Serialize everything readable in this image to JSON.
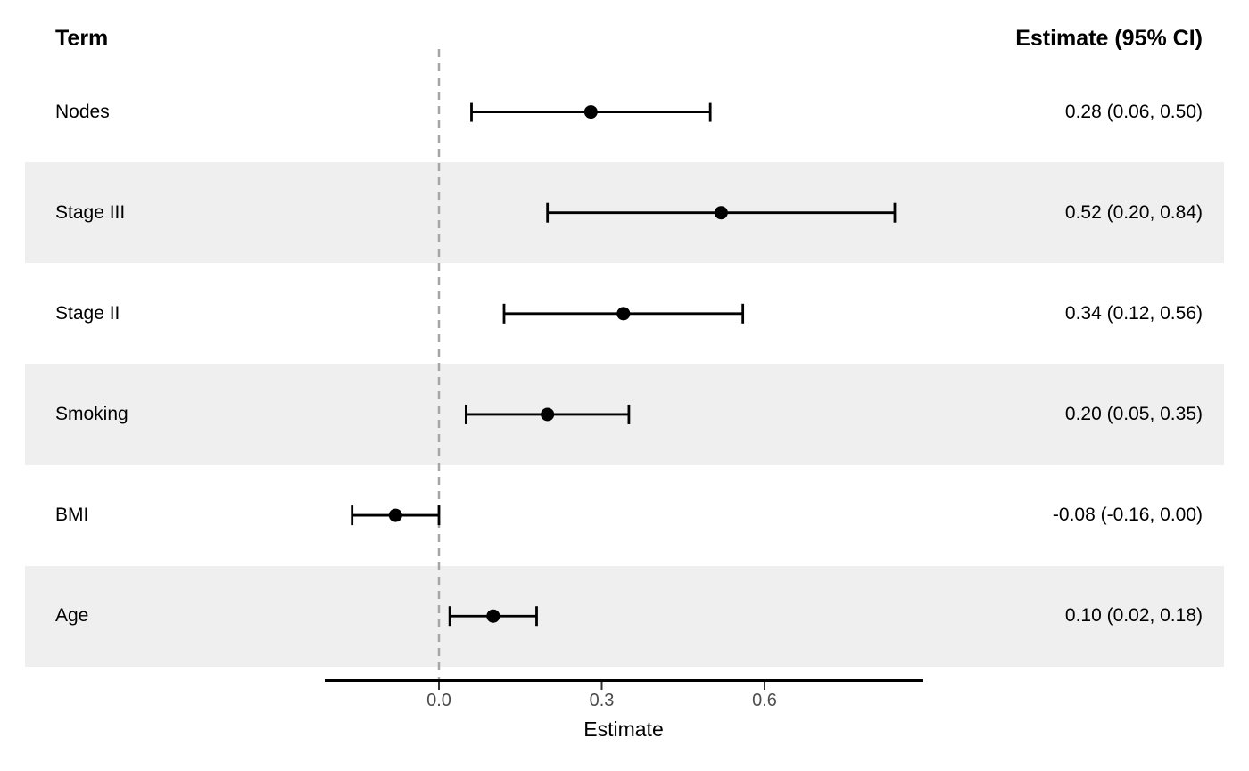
{
  "header": {
    "term": "Term",
    "estimate": "Estimate (95% CI)"
  },
  "chart_data": {
    "type": "forest",
    "title": "",
    "xlabel": "Estimate",
    "xlim": [
      -0.21,
      0.89
    ],
    "grid": false,
    "reference_line": 0,
    "x_ticks": [
      {
        "value": 0.0,
        "label": "0.0"
      },
      {
        "value": 0.3,
        "label": "0.3"
      },
      {
        "value": 0.6,
        "label": "0.6"
      }
    ],
    "rows": [
      {
        "term": "Nodes",
        "estimate": 0.28,
        "ci_low": 0.06,
        "ci_high": 0.5,
        "label": "0.28 (0.06, 0.50)"
      },
      {
        "term": "Stage III",
        "estimate": 0.52,
        "ci_low": 0.2,
        "ci_high": 0.84,
        "label": "0.52 (0.20, 0.84)"
      },
      {
        "term": "Stage II",
        "estimate": 0.34,
        "ci_low": 0.12,
        "ci_high": 0.56,
        "label": "0.34 (0.12, 0.56)"
      },
      {
        "term": "Smoking",
        "estimate": 0.2,
        "ci_low": 0.05,
        "ci_high": 0.35,
        "label": "0.20 (0.05, 0.35)"
      },
      {
        "term": "BMI",
        "estimate": -0.08,
        "ci_low": -0.16,
        "ci_high": 0.0,
        "label": "-0.08 (-0.16, 0.00)"
      },
      {
        "term": "Age",
        "estimate": 0.1,
        "ci_low": 0.02,
        "ci_high": 0.18,
        "label": "0.10 (0.02, 0.18)"
      }
    ],
    "colors": {
      "stripe": "#efefef",
      "marker": "#000000",
      "ci_line": "#000000",
      "axis_line": "#000000",
      "tick_mark": "#333333",
      "tick_label": "#4d4d4d",
      "reference_line": "#a6a6a6"
    }
  }
}
